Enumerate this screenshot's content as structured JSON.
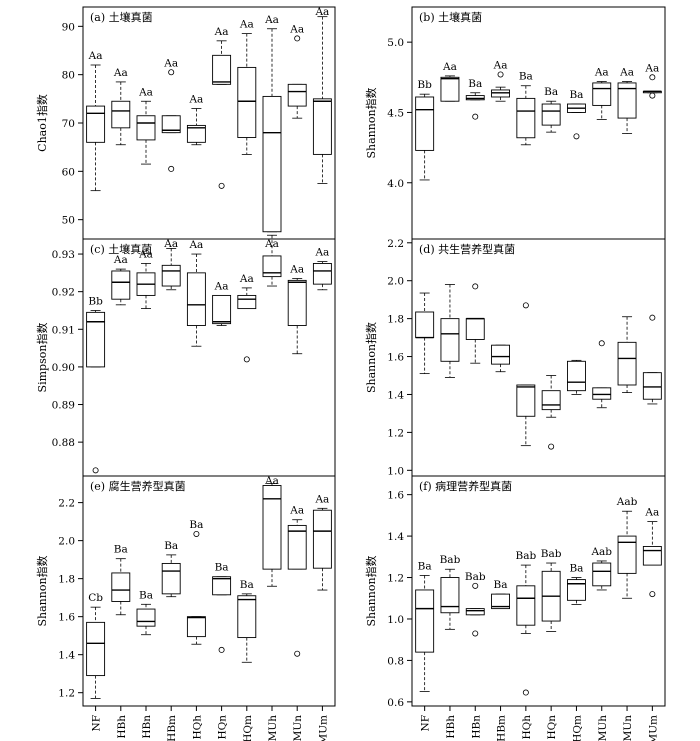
{
  "chart_data": [
    {
      "type": "box",
      "panel_label": "(a) 土壤真菌",
      "ylabel": "Chao1指数",
      "ylim": [
        46,
        94
      ],
      "yticks": [
        50,
        60,
        70,
        80,
        90
      ],
      "categories": [
        "NF",
        "HBh",
        "HBn",
        "HBm",
        "HQh",
        "HQn",
        "HQm",
        "MUh",
        "MUn",
        "MUm"
      ],
      "boxes": [
        {
          "min": 56,
          "q1": 66,
          "median": 72,
          "q3": 73.5,
          "max": 82,
          "outliers": [],
          "letter": "Aa"
        },
        {
          "min": 65.5,
          "q1": 69,
          "median": 72.5,
          "q3": 74.5,
          "max": 78.5,
          "outliers": [],
          "letter": "Aa"
        },
        {
          "min": 61.5,
          "q1": 66.5,
          "median": 70,
          "q3": 71.5,
          "max": 74.5,
          "outliers": [],
          "letter": "Aa"
        },
        {
          "min": 68,
          "q1": 68,
          "median": 68.5,
          "q3": 71.5,
          "max": 71.5,
          "outliers": [
            80.5,
            60.5
          ],
          "letter": "Aa"
        },
        {
          "min": 65.5,
          "q1": 66,
          "median": 69,
          "q3": 69.5,
          "max": 73,
          "outliers": [],
          "letter": "Aa"
        },
        {
          "min": 78,
          "q1": 78,
          "median": 78.5,
          "q3": 84,
          "max": 87,
          "outliers": [
            57
          ],
          "letter": "Aa"
        },
        {
          "min": 63.5,
          "q1": 67,
          "median": 74.5,
          "q3": 81.5,
          "max": 88.5,
          "outliers": [],
          "letter": "Aa"
        },
        {
          "min": 47.5,
          "q1": 47.5,
          "median": 68,
          "q3": 75.5,
          "max": 89.5,
          "outliers": [],
          "letter": "Aa"
        },
        {
          "min": 71,
          "q1": 73.5,
          "median": 76.5,
          "q3": 78,
          "max": 78,
          "outliers": [
            87.5
          ],
          "letter": "Aa"
        },
        {
          "min": 57.5,
          "q1": 63.5,
          "median": 74.5,
          "q3": 75,
          "max": 92,
          "outliers": [],
          "letter": "Aa"
        }
      ]
    },
    {
      "type": "box",
      "panel_label": "(b) 土壤真菌",
      "ylabel": "Shannon指数",
      "ylim": [
        3.6,
        5.25
      ],
      "yticks": [
        4.0,
        4.5,
        5.0
      ],
      "ytick_labels": [
        "4.0",
        "4.5",
        "5.0"
      ],
      "categories": [
        "NF",
        "HBh",
        "HBn",
        "HBm",
        "HQh",
        "HQn",
        "HQm",
        "MUh",
        "MUn",
        "MUm"
      ],
      "boxes": [
        {
          "min": 4.02,
          "q1": 4.23,
          "median": 4.52,
          "q3": 4.61,
          "max": 4.63,
          "outliers": [],
          "letter": "Bb"
        },
        {
          "min": 4.58,
          "q1": 4.58,
          "median": 4.74,
          "q3": 4.75,
          "max": 4.76,
          "outliers": [],
          "letter": "Aa"
        },
        {
          "min": 4.59,
          "q1": 4.59,
          "median": 4.6,
          "q3": 4.62,
          "max": 4.64,
          "outliers": [
            4.47
          ],
          "letter": "Ba"
        },
        {
          "min": 4.58,
          "q1": 4.61,
          "median": 4.64,
          "q3": 4.66,
          "max": 4.68,
          "outliers": [
            4.77
          ],
          "letter": "Aa"
        },
        {
          "min": 4.27,
          "q1": 4.32,
          "median": 4.51,
          "q3": 4.6,
          "max": 4.69,
          "outliers": [],
          "letter": "Ba"
        },
        {
          "min": 4.36,
          "q1": 4.41,
          "median": 4.51,
          "q3": 4.56,
          "max": 4.58,
          "outliers": [],
          "letter": "Ba"
        },
        {
          "min": 4.5,
          "q1": 4.5,
          "median": 4.53,
          "q3": 4.56,
          "max": 4.56,
          "outliers": [
            4.33
          ],
          "letter": "Ba"
        },
        {
          "min": 4.45,
          "q1": 4.55,
          "median": 4.67,
          "q3": 4.71,
          "max": 4.72,
          "outliers": [],
          "letter": "Aa"
        },
        {
          "min": 4.35,
          "q1": 4.46,
          "median": 4.67,
          "q3": 4.71,
          "max": 4.72,
          "outliers": [],
          "letter": "Aa"
        },
        {
          "min": 4.64,
          "q1": 4.64,
          "median": 4.65,
          "q3": 4.65,
          "max": 4.65,
          "outliers": [
            4.75,
            4.62
          ],
          "letter": "Aa"
        }
      ]
    },
    {
      "type": "box",
      "panel_label": "(c) 土壤真菌",
      "ylabel": "Simpson指数",
      "ylim": [
        0.871,
        0.934
      ],
      "yticks": [
        0.88,
        0.89,
        0.9,
        0.91,
        0.92,
        0.93
      ],
      "ytick_labels": [
        "0.88",
        "0.89",
        "0.90",
        "0.91",
        "0.92",
        "0.93"
      ],
      "categories": [
        "NF",
        "HBh",
        "HBn",
        "HBm",
        "HQh",
        "HQn",
        "HQm",
        "MUh",
        "MUn",
        "MUm"
      ],
      "boxes": [
        {
          "min": 0.9,
          "q1": 0.9,
          "median": 0.912,
          "q3": 0.9145,
          "max": 0.915,
          "outliers": [
            0.8725
          ],
          "letter": "Bb"
        },
        {
          "min": 0.9165,
          "q1": 0.918,
          "median": 0.9225,
          "q3": 0.9255,
          "max": 0.926,
          "outliers": [],
          "letter": "Aa"
        },
        {
          "min": 0.9155,
          "q1": 0.919,
          "median": 0.922,
          "q3": 0.925,
          "max": 0.9275,
          "outliers": [],
          "letter": "Aa"
        },
        {
          "min": 0.9205,
          "q1": 0.9215,
          "median": 0.9255,
          "q3": 0.927,
          "max": 0.9315,
          "outliers": [],
          "letter": "Aa"
        },
        {
          "min": 0.9055,
          "q1": 0.911,
          "median": 0.9165,
          "q3": 0.925,
          "max": 0.93,
          "outliers": [],
          "letter": "Aa"
        },
        {
          "min": 0.911,
          "q1": 0.9115,
          "median": 0.912,
          "q3": 0.919,
          "max": 0.919,
          "outliers": [],
          "letter": "Aa"
        },
        {
          "min": 0.9155,
          "q1": 0.9155,
          "median": 0.918,
          "q3": 0.919,
          "max": 0.921,
          "outliers": [
            0.902
          ],
          "letter": "Aa"
        },
        {
          "min": 0.9215,
          "q1": 0.924,
          "median": 0.925,
          "q3": 0.9295,
          "max": 0.935,
          "outliers": [],
          "letter": "Aa"
        },
        {
          "min": 0.9035,
          "q1": 0.911,
          "median": 0.9225,
          "q3": 0.923,
          "max": 0.9235,
          "outliers": [],
          "letter": "Aa"
        },
        {
          "min": 0.9205,
          "q1": 0.922,
          "median": 0.9255,
          "q3": 0.9275,
          "max": 0.928,
          "outliers": [],
          "letter": "Aa"
        }
      ]
    },
    {
      "type": "box",
      "panel_label": "(d) 共生营养型真菌",
      "ylabel": "Shannon指数",
      "ylim": [
        0.97,
        2.22
      ],
      "yticks": [
        1.0,
        1.2,
        1.4,
        1.6,
        1.8,
        2.0,
        2.2
      ],
      "ytick_labels": [
        "1.0",
        "1.2",
        "1.4",
        "1.6",
        "1.8",
        "2.0",
        "2.2"
      ],
      "categories": [
        "NF",
        "HBh",
        "HBn",
        "HBm",
        "HQh",
        "HQn",
        "HQm",
        "MUh",
        "MUn",
        "MUm"
      ],
      "boxes": [
        {
          "min": 1.51,
          "q1": 1.7,
          "median": 1.7,
          "q3": 1.835,
          "max": 1.935,
          "outliers": [],
          "letter": ""
        },
        {
          "min": 1.49,
          "q1": 1.575,
          "median": 1.72,
          "q3": 1.8,
          "max": 1.98,
          "outliers": [],
          "letter": ""
        },
        {
          "min": 1.565,
          "q1": 1.69,
          "median": 1.8,
          "q3": 1.8,
          "max": 1.8,
          "outliers": [
            1.97
          ],
          "letter": ""
        },
        {
          "min": 1.52,
          "q1": 1.56,
          "median": 1.6,
          "q3": 1.66,
          "max": 1.66,
          "outliers": [],
          "letter": ""
        },
        {
          "min": 1.13,
          "q1": 1.285,
          "median": 1.44,
          "q3": 1.45,
          "max": 1.45,
          "outliers": [
            1.87
          ],
          "letter": ""
        },
        {
          "min": 1.28,
          "q1": 1.32,
          "median": 1.345,
          "q3": 1.42,
          "max": 1.5,
          "outliers": [
            1.125
          ],
          "letter": ""
        },
        {
          "min": 1.4,
          "q1": 1.42,
          "median": 1.465,
          "q3": 1.575,
          "max": 1.58,
          "outliers": [],
          "letter": ""
        },
        {
          "min": 1.33,
          "q1": 1.375,
          "median": 1.4,
          "q3": 1.435,
          "max": 1.435,
          "outliers": [
            1.67
          ],
          "letter": ""
        },
        {
          "min": 1.41,
          "q1": 1.45,
          "median": 1.59,
          "q3": 1.675,
          "max": 1.81,
          "outliers": [],
          "letter": ""
        },
        {
          "min": 1.35,
          "q1": 1.375,
          "median": 1.44,
          "q3": 1.515,
          "max": 1.515,
          "outliers": [
            1.805
          ],
          "letter": ""
        }
      ]
    },
    {
      "type": "box",
      "panel_label": "(e) 腐生营养型真菌",
      "ylabel": "Shannon指数",
      "ylim": [
        1.13,
        2.34
      ],
      "yticks": [
        1.2,
        1.4,
        1.6,
        1.8,
        2.0,
        2.2
      ],
      "ytick_labels": [
        "1.2",
        "1.4",
        "1.6",
        "1.8",
        "2.0",
        "2.2"
      ],
      "categories": [
        "NF",
        "HBh",
        "HBn",
        "HBm",
        "HQh",
        "HQn",
        "HQm",
        "MUh",
        "MUn",
        "MUm"
      ],
      "boxes": [
        {
          "min": 1.17,
          "q1": 1.29,
          "median": 1.46,
          "q3": 1.57,
          "max": 1.65,
          "outliers": [],
          "letter": "Cb"
        },
        {
          "min": 1.61,
          "q1": 1.68,
          "median": 1.74,
          "q3": 1.83,
          "max": 1.905,
          "outliers": [],
          "letter": "Ba"
        },
        {
          "min": 1.505,
          "q1": 1.55,
          "median": 1.575,
          "q3": 1.64,
          "max": 1.665,
          "outliers": [],
          "letter": "Ba"
        },
        {
          "min": 1.705,
          "q1": 1.72,
          "median": 1.84,
          "q3": 1.88,
          "max": 1.925,
          "outliers": [],
          "letter": "Ba"
        },
        {
          "min": 1.455,
          "q1": 1.495,
          "median": 1.595,
          "q3": 1.6,
          "max": 1.6,
          "outliers": [
            2.035
          ],
          "letter": "Ba"
        },
        {
          "min": 1.715,
          "q1": 1.715,
          "median": 1.8,
          "q3": 1.81,
          "max": 1.81,
          "outliers": [
            1.425
          ],
          "letter": "Ba"
        },
        {
          "min": 1.36,
          "q1": 1.49,
          "median": 1.69,
          "q3": 1.71,
          "max": 1.72,
          "outliers": [],
          "letter": "Ba"
        },
        {
          "min": 1.76,
          "q1": 1.85,
          "median": 2.22,
          "q3": 2.29,
          "max": 2.3,
          "outliers": [],
          "letter": "Aa"
        },
        {
          "min": 1.85,
          "q1": 1.85,
          "median": 2.05,
          "q3": 2.08,
          "max": 2.11,
          "outliers": [
            1.405
          ],
          "letter": "Aa"
        },
        {
          "min": 1.74,
          "q1": 1.855,
          "median": 2.05,
          "q3": 2.16,
          "max": 2.17,
          "outliers": [],
          "letter": "Aa"
        }
      ]
    },
    {
      "type": "box",
      "panel_label": "(f) 病理营养型真菌",
      "ylabel": "Shannon指数",
      "ylim": [
        0.58,
        1.69
      ],
      "yticks": [
        0.6,
        0.8,
        1.0,
        1.2,
        1.4,
        1.6
      ],
      "ytick_labels": [
        "0.6",
        "0.8",
        "1.0",
        "1.2",
        "1.4",
        "1.6"
      ],
      "categories": [
        "NF",
        "HBh",
        "HBn",
        "HBm",
        "HQh",
        "HQn",
        "HQm",
        "MUh",
        "MUn",
        "MUm"
      ],
      "boxes": [
        {
          "min": 0.65,
          "q1": 0.84,
          "median": 1.05,
          "q3": 1.14,
          "max": 1.21,
          "outliers": [],
          "letter": "Ba"
        },
        {
          "min": 0.95,
          "q1": 1.03,
          "median": 1.06,
          "q3": 1.2,
          "max": 1.24,
          "outliers": [],
          "letter": "Bab"
        },
        {
          "min": 1.02,
          "q1": 1.02,
          "median": 1.04,
          "q3": 1.05,
          "max": 1.05,
          "outliers": [
            1.16,
            0.93
          ],
          "letter": "Bab"
        },
        {
          "min": 1.05,
          "q1": 1.05,
          "median": 1.06,
          "q3": 1.12,
          "max": 1.12,
          "outliers": [],
          "letter": "Ba"
        },
        {
          "min": 0.93,
          "q1": 0.97,
          "median": 1.1,
          "q3": 1.16,
          "max": 1.26,
          "outliers": [
            0.645
          ],
          "letter": "Bab"
        },
        {
          "min": 0.94,
          "q1": 0.99,
          "median": 1.11,
          "q3": 1.23,
          "max": 1.27,
          "outliers": [],
          "letter": "Bab"
        },
        {
          "min": 1.07,
          "q1": 1.09,
          "median": 1.17,
          "q3": 1.19,
          "max": 1.2,
          "outliers": [],
          "letter": "Ba"
        },
        {
          "min": 1.14,
          "q1": 1.16,
          "median": 1.23,
          "q3": 1.27,
          "max": 1.28,
          "outliers": [],
          "letter": "Aab"
        },
        {
          "min": 1.1,
          "q1": 1.22,
          "median": 1.37,
          "q3": 1.4,
          "max": 1.52,
          "outliers": [],
          "letter": "Aab"
        },
        {
          "min": 1.26,
          "q1": 1.26,
          "median": 1.33,
          "q3": 1.35,
          "max": 1.47,
          "outliers": [
            1.12
          ],
          "letter": "Aa"
        }
      ]
    }
  ]
}
